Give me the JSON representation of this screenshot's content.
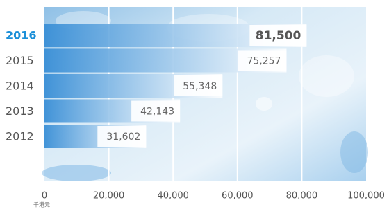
{
  "chart_data": {
    "type": "bar",
    "orientation": "horizontal",
    "categories": [
      "2016",
      "2015",
      "2014",
      "2013",
      "2012"
    ],
    "values": [
      81500,
      75257,
      55348,
      42143,
      31602
    ],
    "value_labels": [
      "81,500",
      "75,257",
      "55,348",
      "42,143",
      "31,602"
    ],
    "color": "#3a8fd6",
    "highlight": "2016",
    "highlight_color": "#1b8fd8",
    "xlim": [
      0,
      100000
    ],
    "xticks": [
      0,
      {
        "value": 20000,
        "label": "20,000"
      },
      {
        "value": 40000,
        "label": "40,000"
      },
      {
        "value": 60000,
        "label": "60,000"
      },
      {
        "value": 80000,
        "label": "80,000"
      },
      {
        "value": 100000,
        "label": "100,000"
      }
    ],
    "xlabel": "千港元",
    "grid": true
  }
}
